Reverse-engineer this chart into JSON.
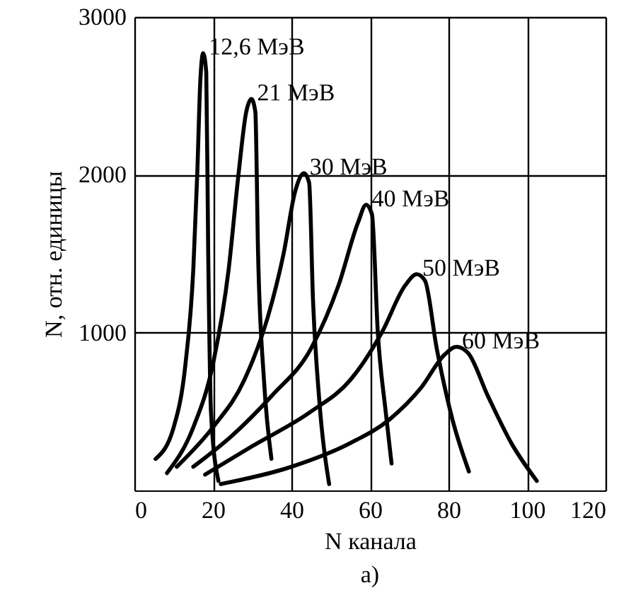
{
  "chart_data": {
    "type": "line",
    "xlabel": "N канала",
    "ylabel": "N, отн. единицы",
    "annotations": [
      "а)"
    ],
    "xlim": [
      0,
      120
    ],
    "xticks": [
      0,
      20,
      40,
      60,
      80,
      100,
      120
    ],
    "ylim": [
      0,
      3000
    ],
    "yticks": [
      1000,
      2000,
      3000
    ],
    "grid": true,
    "marker": "none",
    "line_style": "solid",
    "series": [
      {
        "name": "12,6 МэВ",
        "color": "#000000",
        "x": [
          5.4,
          10,
          13,
          15,
          16,
          16.8,
          17.5,
          18.3,
          18.8,
          19.5,
          21.4
        ],
        "values": [
          200,
          400,
          800,
          1400,
          2000,
          2600,
          2770,
          2650,
          1500,
          500,
          60
        ]
      },
      {
        "name": "21 МэВ",
        "color": "#000000",
        "x": [
          8.3,
          15,
          20,
          24,
          26.5,
          28.5,
          29.8,
          30.8,
          31.5,
          33,
          34.9
        ],
        "values": [
          110,
          400,
          800,
          1400,
          2000,
          2400,
          2480,
          2400,
          1500,
          700,
          200
        ]
      },
      {
        "name": "30 МэВ",
        "color": "#000000",
        "x": [
          10.8,
          20,
          28,
          34,
          38,
          41,
          43.2,
          44.5,
          45.5,
          47,
          49.6
        ],
        "values": [
          150,
          400,
          700,
          1100,
          1500,
          1900,
          2010,
          1950,
          1200,
          600,
          40
        ]
      },
      {
        "name": "40 МэВ",
        "color": "#000000",
        "x": [
          15,
          25,
          35,
          45,
          52,
          57,
          59,
          60.5,
          62,
          64,
          65.5
        ],
        "values": [
          150,
          350,
          600,
          900,
          1300,
          1700,
          1810,
          1750,
          1000,
          500,
          170
        ]
      },
      {
        "name": "50 МэВ",
        "color": "#000000",
        "x": [
          18,
          30,
          45,
          55,
          63,
          69,
          71.9,
          74,
          77,
          81,
          85.2
        ],
        "values": [
          100,
          280,
          500,
          700,
          1000,
          1300,
          1370,
          1330,
          900,
          450,
          120
        ]
      },
      {
        "name": "60 МэВ",
        "color": "#000000",
        "x": [
          22,
          40,
          55,
          65,
          73,
          79,
          82,
          85,
          90,
          96,
          102.5
        ],
        "values": [
          40,
          150,
          300,
          450,
          650,
          860,
          910,
          870,
          600,
          300,
          60
        ]
      }
    ]
  }
}
